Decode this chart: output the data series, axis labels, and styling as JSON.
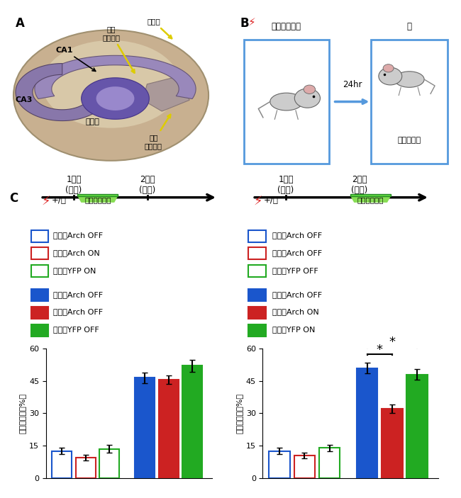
{
  "blue": "#1a56cc",
  "red": "#cc2222",
  "green": "#22aa22",
  "left_bars": {
    "values": [
      12.5,
      9.5,
      13.5,
      46.5,
      45.5,
      52.0
    ],
    "errors": [
      1.5,
      1.2,
      1.8,
      2.5,
      2.0,
      2.8
    ],
    "colors": [
      "white",
      "white",
      "white",
      "#1a56cc",
      "#cc2222",
      "#22aa22"
    ],
    "edgecolors": [
      "#1a56cc",
      "#cc2222",
      "#22aa22",
      "#1a56cc",
      "#cc2222",
      "#22aa22"
    ]
  },
  "right_bars": {
    "values": [
      12.5,
      10.5,
      14.0,
      51.0,
      32.0,
      48.0
    ],
    "errors": [
      1.5,
      1.2,
      1.5,
      2.5,
      2.0,
      2.5
    ],
    "colors": [
      "white",
      "white",
      "white",
      "#1a56cc",
      "#cc2222",
      "#22aa22"
    ],
    "edgecolors": [
      "#1a56cc",
      "#cc2222",
      "#22aa22",
      "#1a56cc",
      "#cc2222",
      "#22aa22"
    ]
  },
  "left_legend": [
    {
      "label": "学習－Arch OFF",
      "color": "#1a56cc",
      "filled": false
    },
    {
      "label": "学習－Arch ON",
      "color": "#cc2222",
      "filled": false
    },
    {
      "label": "学習－YFP ON",
      "color": "#22aa22",
      "filled": false
    },
    {
      "label": "想起－Arch OFF",
      "color": "#1a56cc",
      "filled": true
    },
    {
      "label": "想起－Arch OFF",
      "color": "#cc2222",
      "filled": true
    },
    {
      "label": "想起－YFP OFF",
      "color": "#22aa22",
      "filled": true
    }
  ],
  "right_legend": [
    {
      "label": "学習－Arch OFF",
      "color": "#1a56cc",
      "filled": false
    },
    {
      "label": "学習－Arch OFF",
      "color": "#cc2222",
      "filled": false
    },
    {
      "label": "学習－YFP OFF",
      "color": "#22aa22",
      "filled": false
    },
    {
      "label": "想起－Arch OFF",
      "color": "#1a56cc",
      "filled": true
    },
    {
      "label": "想起－Arch ON",
      "color": "#cc2222",
      "filled": true
    },
    {
      "label": "想起－YFP ON",
      "color": "#22aa22",
      "filled": true
    }
  ],
  "ylabel": "すくみ反応（%）",
  "ylim": [
    0,
    60
  ],
  "yticks": [
    0,
    15,
    30,
    45,
    60
  ],
  "day1_label": "1日目\n(学習)",
  "day2_label": "2日目\n(想起)",
  "inhibit_label": "神経活動抑制",
  "plus_minus": "+/－",
  "box1_title": "箱＋ショック",
  "box2_title": "箱",
  "arrow_label": "24hr",
  "freeze_label": "すくみ反応",
  "panel_labels": [
    "A",
    "B",
    "C"
  ]
}
